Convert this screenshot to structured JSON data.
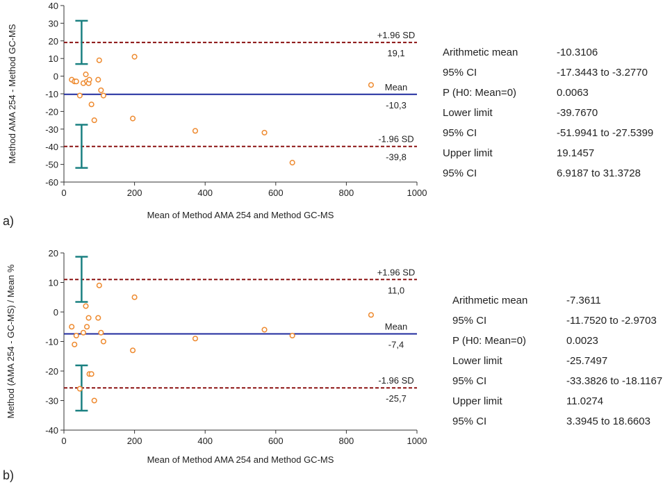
{
  "panels": [
    {
      "tag": "a)",
      "chart_data": {
        "type": "scatter",
        "title": "",
        "xlabel": "Mean of Method AMA 254 and Method GC-MS",
        "ylabel": "Method AMA 254 - Method GC-MS",
        "xlim": [
          0,
          1000
        ],
        "ylim": [
          -60,
          40
        ],
        "xticks": [
          0,
          200,
          400,
          600,
          800,
          1000
        ],
        "yticks": [
          40,
          30,
          20,
          10,
          0,
          -10,
          -20,
          -30,
          -40,
          -50,
          -60
        ],
        "points": [
          [
            22,
            -2
          ],
          [
            30,
            -3
          ],
          [
            35,
            -3
          ],
          [
            45,
            -11
          ],
          [
            55,
            -4
          ],
          [
            62,
            1
          ],
          [
            65,
            -3
          ],
          [
            70,
            -4
          ],
          [
            72,
            -2
          ],
          [
            78,
            -16
          ],
          [
            86,
            -25
          ],
          [
            97,
            -2
          ],
          [
            100,
            9
          ],
          [
            105,
            -8
          ],
          [
            112,
            -11
          ],
          [
            195,
            -24
          ],
          [
            200,
            11
          ],
          [
            372,
            -31
          ],
          [
            568,
            -32
          ],
          [
            647,
            -49
          ],
          [
            870,
            -5
          ]
        ],
        "lines": {
          "upper": {
            "value": 19.1,
            "label": "+1.96 SD",
            "value_label": "19,1"
          },
          "mean": {
            "value": -10.3,
            "label": "Mean",
            "value_label": "-10,3"
          },
          "lower": {
            "value": -39.8,
            "label": "-1.96 SD",
            "value_label": "-39,8"
          }
        },
        "ci_bars": {
          "x": 50,
          "upper": [
            6.9,
            31.4
          ],
          "lower": [
            -52.0,
            -27.5
          ]
        },
        "colors": {
          "points": "#ee8a2f",
          "mean": "#1f2a9e",
          "sd": "#8b1212",
          "ci": "#1a8081"
        }
      },
      "stats": [
        {
          "label": "Arithmetic mean",
          "value": "-10.3106"
        },
        {
          "label": "95% CI",
          "value": "-17.3443 to -3.2770"
        },
        {
          "label": "P (H0: Mean=0)",
          "value": "0.0063"
        },
        {
          "label": "Lower limit",
          "value": "-39.7670"
        },
        {
          "label": "95% CI",
          "value": "-51.9941 to -27.5399"
        },
        {
          "label": "Upper limit",
          "value": "19.1457"
        },
        {
          "label": "95% CI",
          "value": "6.9187 to 31.3728"
        }
      ]
    },
    {
      "tag": "b)",
      "chart_data": {
        "type": "scatter",
        "title": "",
        "xlabel": "Mean of Method AMA 254 and Method GC-MS",
        "ylabel": "Method (AMA 254 - GC-MS) / Mean %",
        "xlim": [
          0,
          1000
        ],
        "ylim": [
          -40,
          20
        ],
        "xticks": [
          0,
          200,
          400,
          600,
          800,
          1000
        ],
        "yticks": [
          20,
          10,
          0,
          -10,
          -20,
          -30,
          -40
        ],
        "points": [
          [
            22,
            -5
          ],
          [
            30,
            -11
          ],
          [
            35,
            -8
          ],
          [
            45,
            -26
          ],
          [
            55,
            -7
          ],
          [
            62,
            2
          ],
          [
            65,
            -5
          ],
          [
            70,
            -2
          ],
          [
            72,
            -21
          ],
          [
            78,
            -21
          ],
          [
            86,
            -30
          ],
          [
            97,
            -2
          ],
          [
            100,
            9
          ],
          [
            105,
            -7
          ],
          [
            112,
            -10
          ],
          [
            195,
            -13
          ],
          [
            200,
            5
          ],
          [
            372,
            -9
          ],
          [
            568,
            -6
          ],
          [
            647,
            -8
          ],
          [
            870,
            -1
          ]
        ],
        "lines": {
          "upper": {
            "value": 11.0,
            "label": "+1.96 SD",
            "value_label": "11,0"
          },
          "mean": {
            "value": -7.4,
            "label": "Mean",
            "value_label": "-7,4"
          },
          "lower": {
            "value": -25.7,
            "label": "-1.96 SD",
            "value_label": "-25,7"
          }
        },
        "ci_bars": {
          "x": 50,
          "upper": [
            3.4,
            18.7
          ],
          "lower": [
            -33.4,
            -18.1
          ]
        },
        "colors": {
          "points": "#ee8a2f",
          "mean": "#1f2a9e",
          "sd": "#8b1212",
          "ci": "#1a8081"
        }
      },
      "stats": [
        {
          "label": "Arithmetic mean",
          "value": "-7.3611"
        },
        {
          "label": "95% CI",
          "value": "-11.7520 to -2.9703"
        },
        {
          "label": "P (H0: Mean=0)",
          "value": "0.0023"
        },
        {
          "label": "Lower limit",
          "value": "-25.7497"
        },
        {
          "label": "95% CI",
          "value": "-33.3826 to -18.1167"
        },
        {
          "label": "Upper limit",
          "value": "11.0274"
        },
        {
          "label": "95% CI",
          "value": "3.3945 to 18.6603"
        }
      ]
    }
  ]
}
